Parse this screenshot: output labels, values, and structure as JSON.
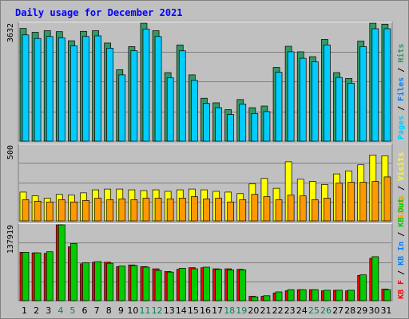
{
  "chart_data": {
    "type": "bar",
    "title": "Daily usage for December 2021",
    "categories": [
      "1",
      "2",
      "3",
      "4",
      "5",
      "6",
      "7",
      "8",
      "9",
      "10",
      "11",
      "12",
      "13",
      "14",
      "15",
      "16",
      "17",
      "18",
      "19",
      "20",
      "21",
      "22",
      "23",
      "24",
      "25",
      "26",
      "27",
      "28",
      "29",
      "30",
      "31"
    ],
    "weekend_days": [
      "4",
      "5",
      "11",
      "12",
      "18",
      "19",
      "25",
      "26"
    ],
    "panels": [
      {
        "name": "hits-files-pages",
        "ymax_label": "3632",
        "ymax": 3632,
        "legend": [
          "Pages",
          "Files",
          "Hits"
        ],
        "series": [
          {
            "name": "Hits",
            "color": "#339966",
            "values": [
              3470,
              3350,
              3400,
              3370,
              3090,
              3380,
              3400,
              3020,
              2200,
              2910,
              3630,
              3400,
              2110,
              2960,
              2040,
              1320,
              1180,
              970,
              1280,
              1030,
              1080,
              2270,
              2920,
              2750,
              2600,
              3130,
              2110,
              1930,
              3080,
              3630,
              3600
            ]
          },
          {
            "name": "Files",
            "color": "#00ccff",
            "values": [
              3270,
              3160,
              3220,
              3180,
              2930,
              3220,
              3240,
              2860,
              2040,
              2780,
              3450,
              3220,
              1950,
              2780,
              1870,
              1160,
              1030,
              820,
              1140,
              850,
              910,
              2120,
              2750,
              2550,
              2440,
              2960,
              1960,
              1780,
              2910,
              3460,
              3460
            ]
          },
          {
            "name": "Pages",
            "color": "#00ccff",
            "values": [
              0,
              0,
              0,
              0,
              0,
              0,
              0,
              0,
              0,
              0,
              0,
              0,
              0,
              0,
              0,
              0,
              0,
              0,
              0,
              0,
              0,
              0,
              0,
              0,
              0,
              0,
              0,
              0,
              0,
              0,
              0
            ]
          }
        ]
      },
      {
        "name": "visits-sites",
        "ymax_label": "500",
        "ymax": 500,
        "legend": [
          "Sites",
          "Visits"
        ],
        "series": [
          {
            "name": "Visits",
            "color": "#ffff00",
            "values": [
              190,
              165,
              150,
              175,
              170,
              185,
              205,
              210,
              210,
              205,
              200,
              205,
              195,
              205,
              210,
              205,
              195,
              190,
              180,
              245,
              280,
              215,
              390,
              275,
              260,
              240,
              310,
              330,
              370,
              435,
              430
            ]
          },
          {
            "name": "Sites",
            "color": "#ff9900",
            "values": [
              140,
              130,
              125,
              140,
              125,
              135,
              150,
              140,
              145,
              140,
              150,
              150,
              145,
              150,
              160,
              145,
              150,
              125,
              140,
              175,
              160,
              140,
              170,
              165,
              140,
              150,
              250,
              255,
              255,
              260,
              290
            ]
          }
        ]
      },
      {
        "name": "kbytes",
        "ymax_label": "137919",
        "ymax": 137919,
        "legend": [
          "KB F",
          "KB In",
          "KB Out"
        ],
        "series": [
          {
            "name": "KB F",
            "color": "#ff0000",
            "values": [
              88000,
              87000,
              86000,
              137919,
              98000,
              67000,
              70000,
              70000,
              62000,
              65000,
              62000,
              58000,
              53000,
              57000,
              60000,
              60000,
              58000,
              58000,
              57000,
              8000,
              8000,
              14000,
              18000,
              20000,
              20000,
              18000,
              19000,
              18000,
              46000,
              77000,
              21000
            ]
          },
          {
            "name": "KB In",
            "color": "#00cc00",
            "values": [
              88000,
              87000,
              89000,
              137919,
              104000,
              69000,
              71000,
              68000,
              63000,
              64000,
              61000,
              55000,
              52000,
              59000,
              58000,
              61000,
              57000,
              56000,
              56000,
              7000,
              9000,
              16000,
              20000,
              20000,
              20000,
              19000,
              19000,
              19000,
              47000,
              80000,
              20000
            ]
          },
          {
            "name": "KB Out",
            "color": "#00cc00",
            "values": [
              0,
              0,
              0,
              0,
              0,
              0,
              0,
              0,
              0,
              0,
              0,
              0,
              0,
              0,
              0,
              0,
              0,
              0,
              0,
              0,
              0,
              0,
              0,
              0,
              0,
              0,
              0,
              0,
              0,
              0,
              0
            ]
          }
        ]
      }
    ]
  }
}
